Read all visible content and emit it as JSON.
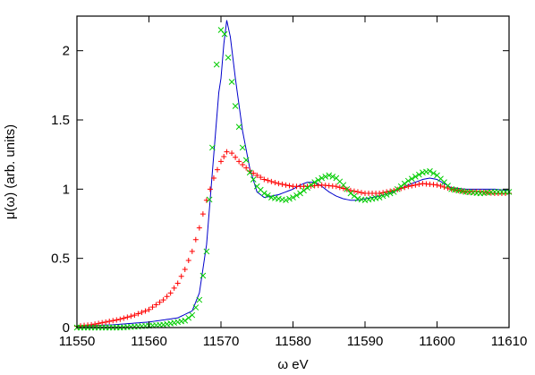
{
  "chart_data": {
    "type": "scatter",
    "title": "",
    "xlabel": "ω eV",
    "ylabel": "μ(ω) (arb. units)",
    "xlim": [
      11550,
      11610
    ],
    "ylim": [
      0,
      2.25
    ],
    "grid": false,
    "legend": "none",
    "x_ticks": [
      {
        "value": 11550,
        "label": "11550"
      },
      {
        "value": 11560,
        "label": "11560"
      },
      {
        "value": 11570,
        "label": "11570"
      },
      {
        "value": 11580,
        "label": "11580"
      },
      {
        "value": 11590,
        "label": "11590"
      },
      {
        "value": 11600,
        "label": "11600"
      },
      {
        "value": 11610,
        "label": "11610"
      }
    ],
    "y_ticks": [
      {
        "value": 0,
        "label": "0"
      },
      {
        "value": 0.5,
        "label": "0.5"
      },
      {
        "value": 1,
        "label": "1"
      },
      {
        "value": 1.5,
        "label": "1.5"
      },
      {
        "value": 2,
        "label": "2"
      }
    ],
    "series": [
      {
        "style": "line",
        "color": "#0000cc",
        "points": [
          [
            11550,
            0.01
          ],
          [
            11555,
            0.02
          ],
          [
            11560,
            0.04
          ],
          [
            11564,
            0.07
          ],
          [
            11566,
            0.12
          ],
          [
            11567,
            0.25
          ],
          [
            11568,
            0.6
          ],
          [
            11569,
            1.25
          ],
          [
            11569.7,
            1.7
          ],
          [
            11570,
            1.8
          ],
          [
            11570.4,
            2.05
          ],
          [
            11570.8,
            2.22
          ],
          [
            11571.3,
            2.1
          ],
          [
            11572,
            1.8
          ],
          [
            11573,
            1.42
          ],
          [
            11574,
            1.15
          ],
          [
            11575,
            0.98
          ],
          [
            11576,
            0.94
          ],
          [
            11577,
            0.95
          ],
          [
            11578,
            0.96
          ],
          [
            11579,
            0.98
          ],
          [
            11580,
            1.0
          ],
          [
            11581,
            1.03
          ],
          [
            11582,
            1.05
          ],
          [
            11583,
            1.05
          ],
          [
            11584,
            1.02
          ],
          [
            11585,
            0.98
          ],
          [
            11586,
            0.95
          ],
          [
            11587,
            0.93
          ],
          [
            11588,
            0.92
          ],
          [
            11589,
            0.92
          ],
          [
            11590,
            0.93
          ],
          [
            11592,
            0.95
          ],
          [
            11594,
            0.98
          ],
          [
            11596,
            1.03
          ],
          [
            11598,
            1.07
          ],
          [
            11599,
            1.08
          ],
          [
            11600,
            1.07
          ],
          [
            11601,
            1.04
          ],
          [
            11602,
            1.01
          ],
          [
            11604,
            1.0
          ],
          [
            11606,
            1.0
          ],
          [
            11608,
            1.0
          ],
          [
            11610,
            0.99
          ]
        ]
      },
      {
        "style": "plus",
        "color": "#ff0000",
        "points": [
          [
            11550,
            0.01
          ],
          [
            11552,
            0.02
          ],
          [
            11554,
            0.04
          ],
          [
            11556,
            0.06
          ],
          [
            11558,
            0.09
          ],
          [
            11560,
            0.13
          ],
          [
            11562,
            0.2
          ],
          [
            11563,
            0.25
          ],
          [
            11564,
            0.32
          ],
          [
            11565,
            0.42
          ],
          [
            11566,
            0.55
          ],
          [
            11567,
            0.72
          ],
          [
            11568,
            0.92
          ],
          [
            11569,
            1.08
          ],
          [
            11570,
            1.2
          ],
          [
            11570.8,
            1.27
          ],
          [
            11571.5,
            1.26
          ],
          [
            11572.5,
            1.2
          ],
          [
            11574,
            1.13
          ],
          [
            11576,
            1.07
          ],
          [
            11578,
            1.04
          ],
          [
            11580,
            1.02
          ],
          [
            11582,
            1.02
          ],
          [
            11584,
            1.03
          ],
          [
            11586,
            1.02
          ],
          [
            11588,
            0.99
          ],
          [
            11590,
            0.97
          ],
          [
            11592,
            0.97
          ],
          [
            11594,
            0.99
          ],
          [
            11596,
            1.02
          ],
          [
            11598,
            1.04
          ],
          [
            11600,
            1.03
          ],
          [
            11602,
            1.0
          ],
          [
            11604,
            0.98
          ],
          [
            11606,
            0.98
          ],
          [
            11608,
            0.97
          ],
          [
            11610,
            0.97
          ]
        ]
      },
      {
        "style": "cross",
        "color": "#00cc00",
        "points": [
          [
            11550,
            0.0
          ],
          [
            11556,
            0.0
          ],
          [
            11562,
            0.02
          ],
          [
            11565,
            0.05
          ],
          [
            11566,
            0.09
          ],
          [
            11567,
            0.2
          ],
          [
            11568,
            0.55
          ],
          [
            11568.8,
            1.3
          ],
          [
            11569.4,
            1.9
          ],
          [
            11570,
            2.15
          ],
          [
            11570.5,
            2.12
          ],
          [
            11571,
            1.95
          ],
          [
            11572,
            1.6
          ],
          [
            11573,
            1.3
          ],
          [
            11574,
            1.12
          ],
          [
            11575,
            1.02
          ],
          [
            11576,
            0.97
          ],
          [
            11577,
            0.94
          ],
          [
            11578,
            0.93
          ],
          [
            11579,
            0.92
          ],
          [
            11580,
            0.94
          ],
          [
            11581,
            0.97
          ],
          [
            11582,
            1.01
          ],
          [
            11583,
            1.05
          ],
          [
            11584,
            1.08
          ],
          [
            11585,
            1.1
          ],
          [
            11586,
            1.08
          ],
          [
            11587,
            1.03
          ],
          [
            11588,
            0.97
          ],
          [
            11589,
            0.93
          ],
          [
            11590,
            0.92
          ],
          [
            11592,
            0.94
          ],
          [
            11594,
            0.98
          ],
          [
            11596,
            1.06
          ],
          [
            11598,
            1.12
          ],
          [
            11599,
            1.13
          ],
          [
            11600,
            1.1
          ],
          [
            11601,
            1.05
          ],
          [
            11602,
            1.0
          ],
          [
            11604,
            0.98
          ],
          [
            11606,
            0.97
          ],
          [
            11608,
            0.98
          ],
          [
            11610,
            0.98
          ]
        ]
      }
    ]
  }
}
